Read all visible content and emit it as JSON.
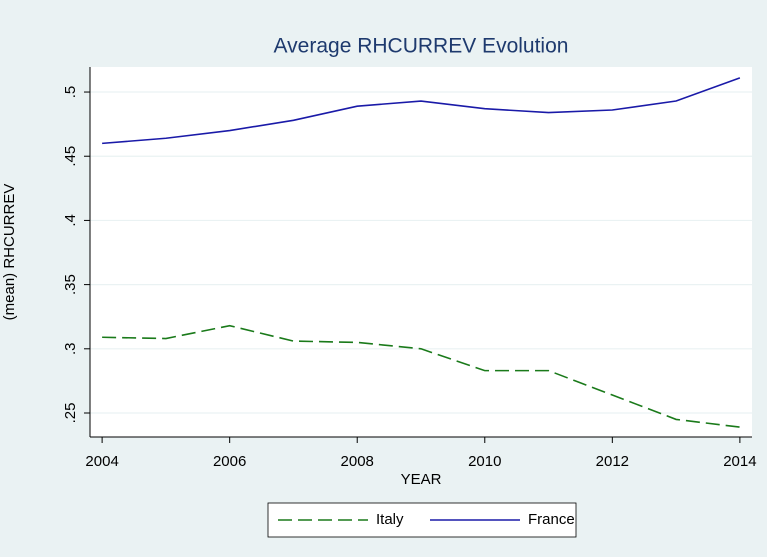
{
  "chart_data": {
    "type": "line",
    "title": "Average RHCURREV Evolution",
    "x_label": "YEAR",
    "y_label": "(mean) RHCURREV",
    "x": [
      2004,
      2005,
      2006,
      2007,
      2008,
      2009,
      2010,
      2011,
      2012,
      2013,
      2014
    ],
    "series": [
      {
        "name": "Italy",
        "color": "#1a7a1a",
        "dashed": true,
        "values": [
          0.309,
          0.308,
          0.318,
          0.306,
          0.305,
          0.3,
          0.283,
          0.283,
          0.264,
          0.245,
          0.239
        ]
      },
      {
        "name": "France",
        "color": "#1a1aa8",
        "dashed": false,
        "values": [
          0.46,
          0.464,
          0.47,
          0.478,
          0.489,
          0.493,
          0.487,
          0.484,
          0.486,
          0.493,
          0.511
        ]
      }
    ],
    "xlim": [
      2003.81,
      2014.19
    ],
    "xticks": [
      2004,
      2006,
      2008,
      2010,
      2012,
      2014
    ],
    "ylim": [
      0.2313,
      0.5195
    ],
    "yticks": [
      {
        "value": 0.25,
        "label": ".25"
      },
      {
        "value": 0.3,
        "label": ".3"
      },
      {
        "value": 0.35,
        "label": ".35"
      },
      {
        "value": 0.4,
        "label": ".4"
      },
      {
        "value": 0.45,
        "label": ".45"
      },
      {
        "value": 0.5,
        "label": ".5"
      }
    ],
    "grid": true,
    "legend": "bottom"
  }
}
